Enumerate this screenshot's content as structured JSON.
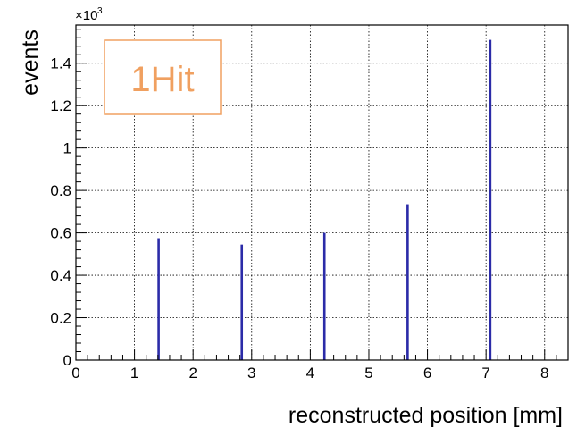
{
  "chart_data": {
    "type": "bar",
    "xlabel": "reconstructed position [mm]",
    "ylabel": "events",
    "y_multiplier": "×10",
    "y_multiplier_exp": "3",
    "annotation": "1Hit",
    "xlim": [
      0,
      8.4
    ],
    "ylim": [
      0,
      1.58
    ],
    "grid": true,
    "x_ticks": [
      "0",
      "1",
      "2",
      "3",
      "4",
      "5",
      "6",
      "7",
      "8"
    ],
    "y_ticks": [
      "0",
      "0.2",
      "0.4",
      "0.6",
      "0.8",
      "1",
      "1.2",
      "1.4"
    ],
    "x": [
      1.41,
      2.83,
      4.24,
      5.66,
      7.07
    ],
    "values": [
      0.575,
      0.545,
      0.6,
      0.735,
      1.51
    ],
    "colors": {
      "bar": "#2b2ba8",
      "annotation": "#f0a060",
      "grid": "#000000"
    }
  }
}
